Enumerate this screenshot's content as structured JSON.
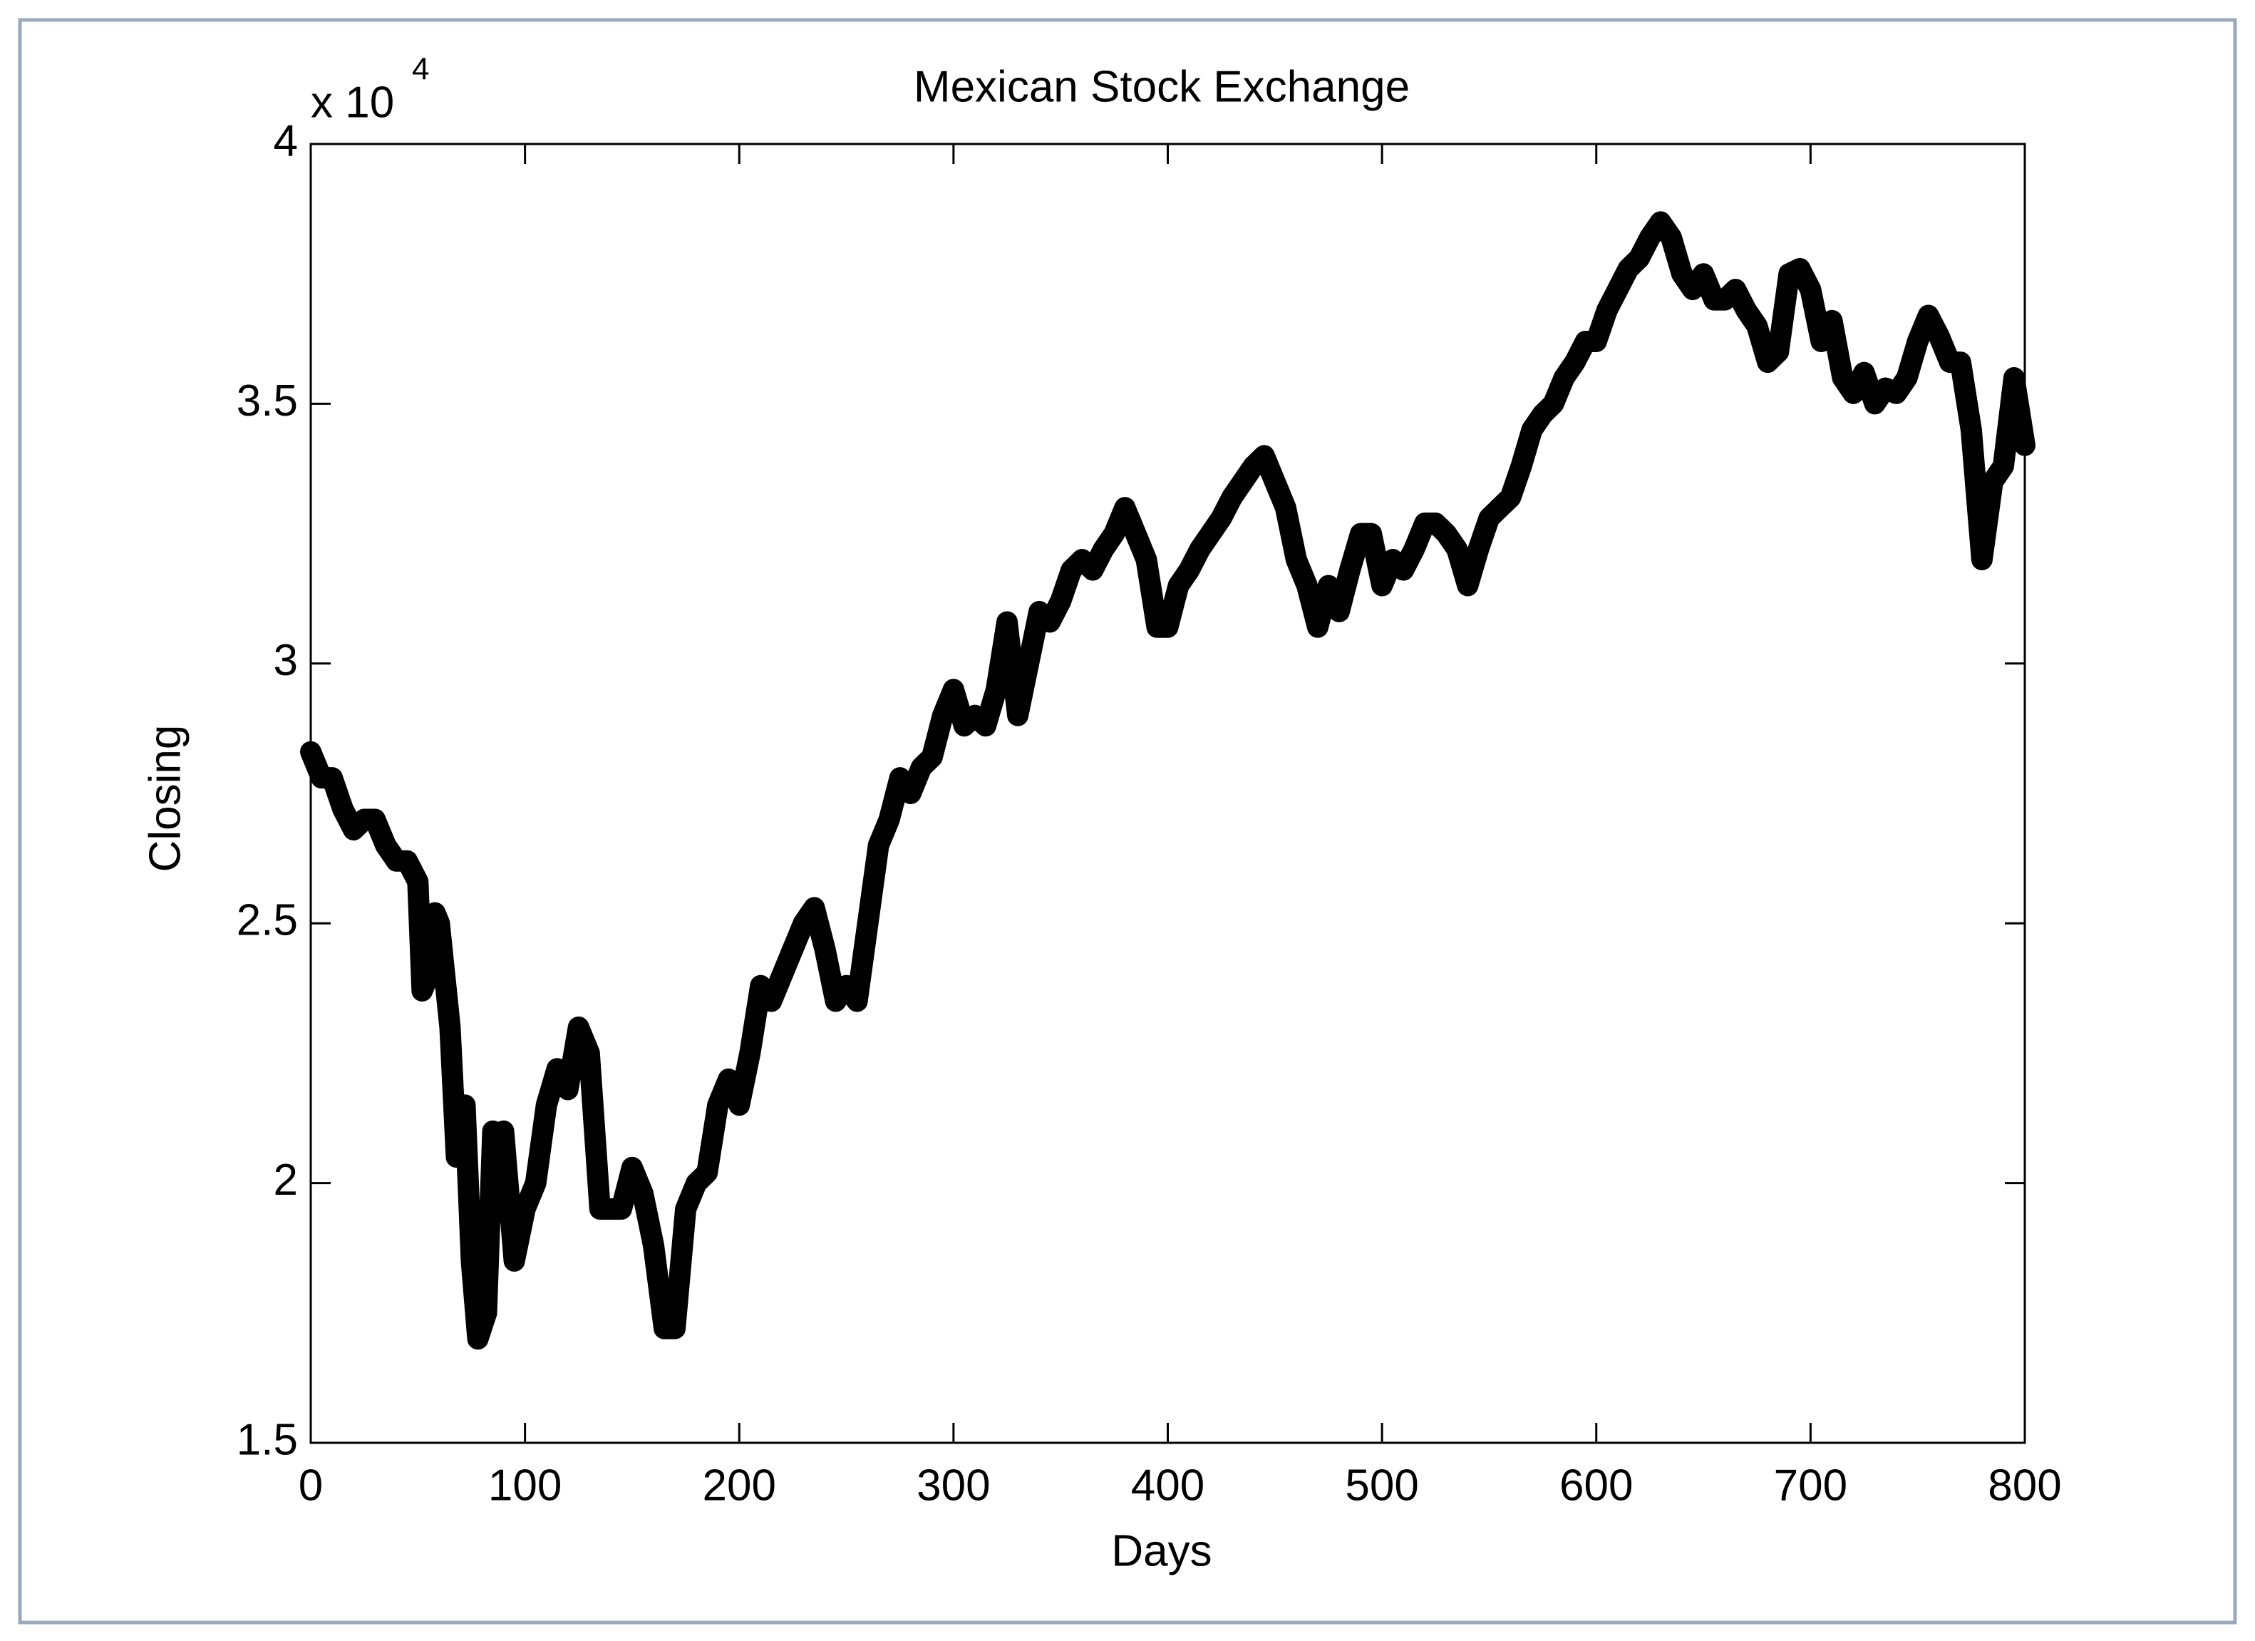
{
  "chart_data": {
    "type": "line",
    "title": "Mexican Stock Exchange",
    "x_label": "Days",
    "y_label": "Closing",
    "y_multiplier": "x 10",
    "y_multiplier_exponent": "4",
    "x": [
      0,
      5,
      10,
      15,
      20,
      25,
      30,
      35,
      40,
      45,
      50,
      52,
      55,
      58,
      60,
      65,
      68,
      72,
      75,
      78,
      82,
      85,
      88,
      90,
      95,
      100,
      105,
      110,
      115,
      120,
      125,
      130,
      135,
      140,
      145,
      150,
      155,
      160,
      165,
      170,
      175,
      180,
      185,
      190,
      195,
      200,
      205,
      210,
      215,
      220,
      225,
      230,
      235,
      240,
      245,
      250,
      255,
      260,
      265,
      270,
      275,
      280,
      285,
      290,
      295,
      300,
      305,
      310,
      315,
      320,
      325,
      330,
      335,
      340,
      345,
      350,
      355,
      360,
      365,
      370,
      375,
      380,
      385,
      390,
      395,
      400,
      405,
      410,
      415,
      420,
      425,
      430,
      435,
      440,
      445,
      450,
      455,
      460,
      465,
      470,
      475,
      480,
      485,
      490,
      495,
      500,
      505,
      510,
      515,
      520,
      525,
      530,
      535,
      540,
      545,
      550,
      555,
      560,
      565,
      570,
      575,
      580,
      585,
      590,
      595,
      600,
      605,
      610,
      615,
      620,
      625,
      630,
      635,
      640,
      645,
      650,
      655,
      660,
      665,
      670,
      675,
      680,
      685,
      690,
      695,
      700,
      705,
      710,
      715,
      720,
      725,
      730,
      735,
      740,
      745,
      750,
      755,
      760,
      765,
      770,
      775,
      780,
      785,
      790,
      795,
      800
    ],
    "series": [
      {
        "name": "Closing",
        "color": "#000000",
        "values": [
          2.83,
          2.78,
          2.78,
          2.72,
          2.68,
          2.7,
          2.7,
          2.65,
          2.62,
          2.62,
          2.58,
          2.37,
          2.4,
          2.52,
          2.5,
          2.3,
          2.05,
          2.15,
          1.85,
          1.7,
          1.75,
          2.1,
          1.95,
          2.1,
          1.85,
          1.95,
          2.0,
          2.15,
          2.22,
          2.18,
          2.3,
          2.25,
          1.95,
          1.95,
          1.95,
          2.03,
          1.98,
          1.88,
          1.72,
          1.72,
          1.95,
          2.0,
          2.02,
          2.15,
          2.2,
          2.15,
          2.25,
          2.38,
          2.35,
          2.4,
          2.45,
          2.5,
          2.53,
          2.45,
          2.35,
          2.38,
          2.35,
          2.5,
          2.65,
          2.7,
          2.78,
          2.75,
          2.8,
          2.82,
          2.9,
          2.95,
          2.88,
          2.9,
          2.88,
          2.95,
          3.08,
          2.9,
          3.0,
          3.1,
          3.08,
          3.12,
          3.18,
          3.2,
          3.18,
          3.22,
          3.25,
          3.3,
          3.25,
          3.2,
          3.07,
          3.07,
          3.15,
          3.18,
          3.22,
          3.25,
          3.28,
          3.32,
          3.35,
          3.38,
          3.4,
          3.35,
          3.3,
          3.2,
          3.15,
          3.07,
          3.15,
          3.1,
          3.18,
          3.25,
          3.25,
          3.15,
          3.2,
          3.18,
          3.22,
          3.27,
          3.27,
          3.25,
          3.22,
          3.15,
          3.22,
          3.28,
          3.3,
          3.32,
          3.38,
          3.45,
          3.48,
          3.5,
          3.55,
          3.58,
          3.62,
          3.62,
          3.68,
          3.72,
          3.76,
          3.78,
          3.82,
          3.85,
          3.82,
          3.75,
          3.72,
          3.75,
          3.7,
          3.7,
          3.72,
          3.68,
          3.65,
          3.58,
          3.6,
          3.75,
          3.76,
          3.72,
          3.62,
          3.66,
          3.55,
          3.52,
          3.56,
          3.5,
          3.53,
          3.52,
          3.55,
          3.62,
          3.67,
          3.63,
          3.58,
          3.58,
          3.45,
          3.2,
          3.35,
          3.38,
          3.55,
          3.42
        ]
      }
    ],
    "xlim": [
      0,
      800
    ],
    "xticks": [
      0,
      100,
      200,
      300,
      400,
      500,
      600,
      700,
      800
    ],
    "ylim": [
      1.5,
      4
    ],
    "yticks": [
      1.5,
      2,
      2.5,
      3,
      3.5,
      4
    ],
    "grid": false
  }
}
